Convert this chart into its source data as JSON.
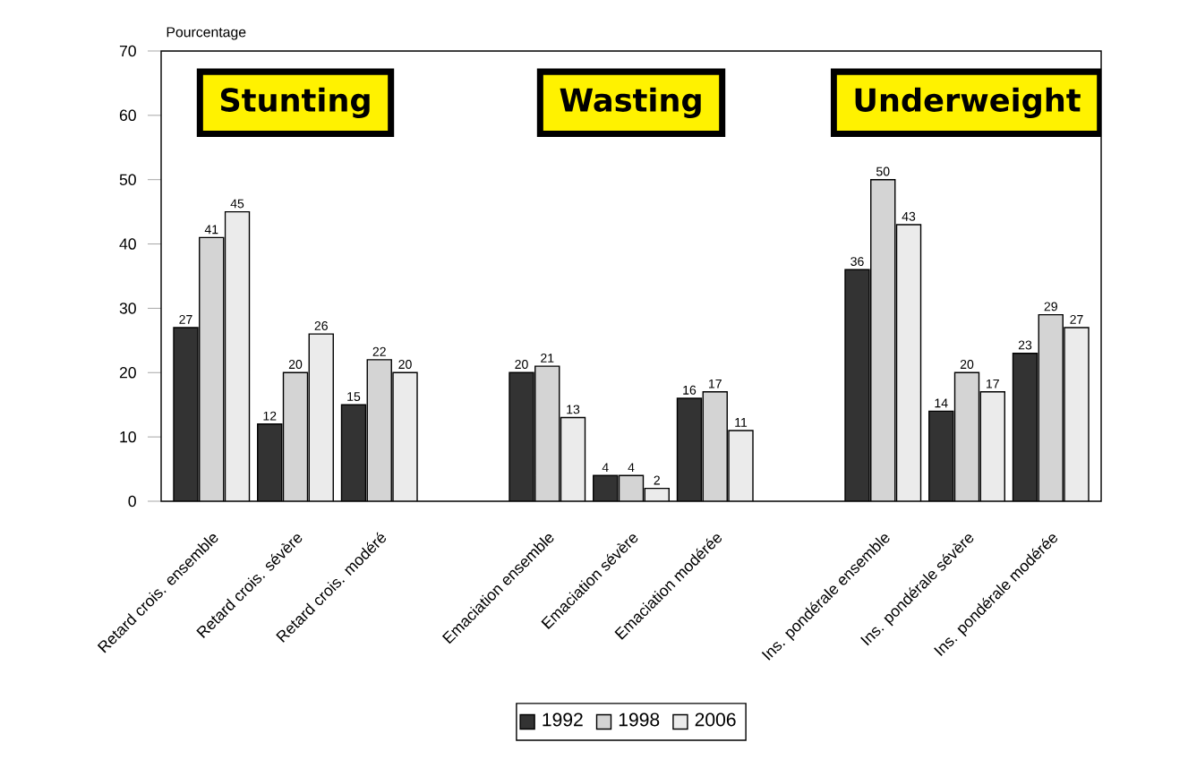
{
  "chart_data": {
    "type": "bar",
    "ylabel": "Pourcentage",
    "categories": [
      "Retard crois. ensemble",
      "Retard crois. sévère",
      "Retard crois. modéré",
      null,
      "Emaciation ensemble",
      "Emaciation sévère",
      "Emaciation modérée",
      null,
      "Ins. pondérale ensemble",
      "Ins. pondérale sévère",
      "Ins. pondérale modérée"
    ],
    "series": [
      {
        "name": "1992",
        "color": "#333333",
        "values": [
          27,
          12,
          15,
          null,
          20,
          4,
          16,
          null,
          36,
          14,
          23
        ]
      },
      {
        "name": "1998",
        "color": "#d4d4d4",
        "values": [
          41,
          20,
          22,
          null,
          21,
          4,
          17,
          null,
          50,
          20,
          29
        ]
      },
      {
        "name": "2006",
        "color": "#ebebeb",
        "values": [
          45,
          26,
          20,
          null,
          13,
          2,
          11,
          null,
          43,
          17,
          27
        ]
      }
    ],
    "ylim": [
      0,
      70
    ],
    "yticks": [
      0,
      10,
      20,
      30,
      40,
      50,
      60,
      70
    ],
    "data_labels": true,
    "legend": "bottom",
    "annotations": [
      "Stunting",
      "Wasting",
      "Underweight"
    ]
  }
}
